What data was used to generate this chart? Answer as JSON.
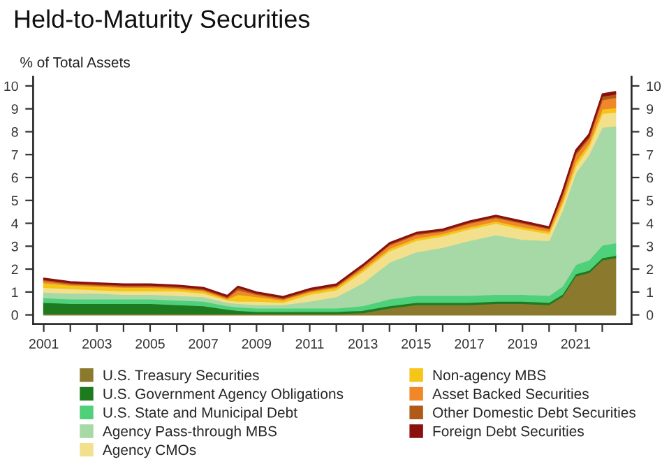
{
  "chart_data": {
    "type": "area",
    "stacked": true,
    "title": "Held-to-Maturity Securities",
    "ylabel": "% of Total Assets",
    "x": [
      2001,
      2002,
      2003,
      2004,
      2005,
      2006,
      2007,
      2007.9,
      2008.3,
      2009,
      2010,
      2011,
      2012,
      2013,
      2014,
      2015,
      2016,
      2017,
      2018,
      2019,
      2020,
      2020.5,
      2021,
      2021.5,
      2022,
      2022.5
    ],
    "series": [
      {
        "name": "U.S. Treasury Securities",
        "color": "#8b7a2e",
        "values": [
          0.05,
          0.05,
          0.05,
          0.05,
          0.05,
          0.05,
          0.05,
          0.05,
          0.05,
          0.05,
          0.05,
          0.05,
          0.05,
          0.1,
          0.3,
          0.45,
          0.45,
          0.45,
          0.5,
          0.5,
          0.45,
          0.8,
          1.7,
          1.85,
          2.4,
          2.5
        ]
      },
      {
        "name": "U.S. Government Agency Obligations",
        "color": "#1e7a1e",
        "values": [
          0.5,
          0.45,
          0.45,
          0.45,
          0.45,
          0.4,
          0.35,
          0.2,
          0.15,
          0.1,
          0.1,
          0.1,
          0.1,
          0.1,
          0.1,
          0.1,
          0.1,
          0.1,
          0.1,
          0.1,
          0.1,
          0.1,
          0.1,
          0.1,
          0.1,
          0.1
        ]
      },
      {
        "name": "U.S. State and Municipal Debt",
        "color": "#4fd07a",
        "values": [
          0.2,
          0.2,
          0.2,
          0.2,
          0.2,
          0.2,
          0.2,
          0.15,
          0.15,
          0.15,
          0.15,
          0.15,
          0.15,
          0.2,
          0.3,
          0.3,
          0.3,
          0.3,
          0.3,
          0.3,
          0.3,
          0.35,
          0.4,
          0.45,
          0.55,
          0.55
        ]
      },
      {
        "name": "Agency Pass-through MBS",
        "color": "#a6d9a6",
        "values": [
          0.25,
          0.25,
          0.25,
          0.2,
          0.2,
          0.2,
          0.2,
          0.15,
          0.15,
          0.15,
          0.15,
          0.3,
          0.5,
          1.0,
          1.6,
          1.9,
          2.1,
          2.4,
          2.6,
          2.4,
          2.4,
          3.3,
          4.0,
          4.6,
          5.15,
          5.1
        ]
      },
      {
        "name": "Agency CMOs",
        "color": "#f2e08c",
        "values": [
          0.2,
          0.2,
          0.15,
          0.15,
          0.15,
          0.2,
          0.15,
          0.1,
          0.1,
          0.15,
          0.1,
          0.3,
          0.3,
          0.5,
          0.5,
          0.5,
          0.5,
          0.5,
          0.5,
          0.45,
          0.3,
          0.3,
          0.3,
          0.35,
          0.6,
          0.6
        ]
      },
      {
        "name": "Non-agency MBS",
        "color": "#f5c518",
        "values": [
          0.2,
          0.15,
          0.15,
          0.15,
          0.15,
          0.1,
          0.1,
          0.05,
          0.3,
          0.2,
          0.1,
          0.1,
          0.1,
          0.1,
          0.1,
          0.1,
          0.1,
          0.1,
          0.1,
          0.1,
          0.1,
          0.15,
          0.2,
          0.15,
          0.2,
          0.2
        ]
      },
      {
        "name": "Asset Backed Securities",
        "color": "#f0882a",
        "values": [
          0.1,
          0.05,
          0.05,
          0.05,
          0.05,
          0.05,
          0.05,
          0.05,
          0.2,
          0.1,
          0.05,
          0.05,
          0.05,
          0.1,
          0.15,
          0.15,
          0.1,
          0.15,
          0.15,
          0.15,
          0.1,
          0.2,
          0.3,
          0.2,
          0.4,
          0.45
        ]
      },
      {
        "name": "Other Domestic Debt Securities",
        "color": "#b05a1a",
        "values": [
          0.05,
          0.05,
          0.05,
          0.05,
          0.05,
          0.05,
          0.05,
          0.05,
          0.1,
          0.05,
          0.05,
          0.05,
          0.05,
          0.05,
          0.05,
          0.05,
          0.05,
          0.05,
          0.05,
          0.05,
          0.05,
          0.1,
          0.1,
          0.1,
          0.15,
          0.15
        ]
      },
      {
        "name": "Foreign Debt Securities",
        "color": "#8b1010",
        "values": [
          0.05,
          0.05,
          0.05,
          0.05,
          0.05,
          0.05,
          0.05,
          0.05,
          0.05,
          0.05,
          0.05,
          0.05,
          0.05,
          0.05,
          0.05,
          0.05,
          0.05,
          0.05,
          0.05,
          0.05,
          0.05,
          0.1,
          0.1,
          0.1,
          0.1,
          0.1
        ]
      }
    ],
    "xlim": [
      2000.6,
      2023.1
    ],
    "xticks": [
      2001,
      {
        "value": 2002,
        "label": null
      },
      2003,
      {
        "value": 2004,
        "label": null
      },
      2005,
      {
        "value": 2006,
        "label": null
      },
      2007,
      {
        "value": 2008,
        "label": null
      },
      2009,
      {
        "value": 2010,
        "label": null
      },
      2011,
      {
        "value": 2012,
        "label": null
      },
      2013,
      {
        "value": 2014,
        "label": null
      },
      2015,
      {
        "value": 2016,
        "label": null
      },
      2017,
      {
        "value": 2018,
        "label": null
      },
      2019,
      {
        "value": 2020,
        "label": null
      },
      2021,
      {
        "value": 2022,
        "label": null
      }
    ],
    "ylim": [
      -0.4,
      10.4
    ],
    "yticks": [
      0,
      1,
      2,
      3,
      4,
      5,
      6,
      7,
      8,
      9,
      10
    ],
    "y2lim": [
      -0.4,
      10.4
    ],
    "y2ticks": [
      0,
      1,
      2,
      3,
      4,
      5,
      6,
      7,
      8,
      9,
      10
    ],
    "grid": false,
    "legend": "bottom"
  }
}
